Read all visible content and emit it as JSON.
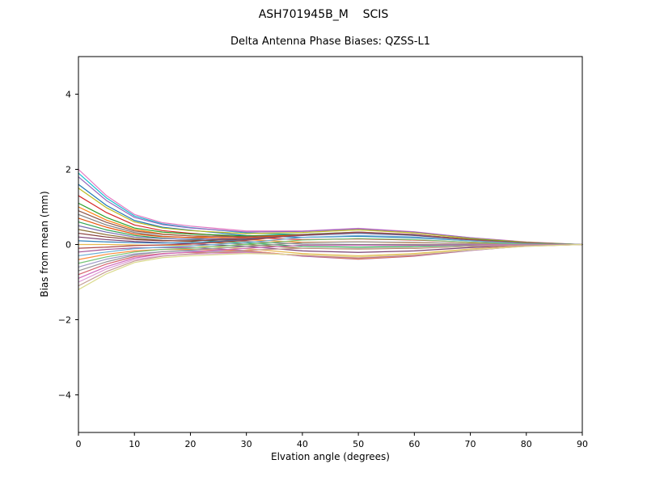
{
  "figure": {
    "suptitle": "ASH701945B_M    SCIS",
    "background": "#ffffff"
  },
  "chart_data": {
    "type": "line",
    "title": "Delta Antenna Phase Biases: QZSS-L1",
    "xlabel": "Elvation angle (degrees)",
    "ylabel": "Bias from mean (mm)",
    "xlim": [
      0,
      90
    ],
    "ylim": [
      -5,
      5
    ],
    "x_ticks": [
      0,
      10,
      20,
      30,
      40,
      50,
      60,
      70,
      80,
      90
    ],
    "x_tick_labels": [
      "0",
      "10",
      "20",
      "30",
      "40",
      "50",
      "60",
      "70",
      "80",
      "90"
    ],
    "y_ticks": [
      -4,
      -2,
      0,
      2,
      4
    ],
    "y_tick_labels": [
      "−4",
      "−2",
      "0",
      "2",
      "4"
    ],
    "grid": false,
    "legend": "none",
    "line_width": 1.2,
    "x": [
      0,
      5,
      10,
      15,
      20,
      30,
      40,
      50,
      60,
      70,
      80,
      90
    ],
    "series": [
      {
        "name": "line-01",
        "color": "#e377c2",
        "values": [
          2.0,
          1.3,
          0.8,
          0.58,
          0.49,
          0.36,
          0.36,
          0.43,
          0.34,
          0.18,
          0.07,
          0.0
        ]
      },
      {
        "name": "line-02",
        "color": "#17becf",
        "values": [
          1.9,
          1.24,
          0.76,
          0.55,
          0.45,
          0.31,
          0.26,
          0.31,
          0.25,
          0.13,
          0.05,
          0.0
        ]
      },
      {
        "name": "line-03",
        "color": "#9467bd",
        "values": [
          1.8,
          1.17,
          0.72,
          0.53,
          0.44,
          0.33,
          0.35,
          0.42,
          0.33,
          0.18,
          0.06,
          0.0
        ]
      },
      {
        "name": "line-04",
        "color": "#1f77b4",
        "values": [
          1.6,
          1.04,
          0.64,
          0.46,
          0.38,
          0.24,
          0.19,
          0.22,
          0.18,
          0.1,
          0.04,
          0.0
        ]
      },
      {
        "name": "line-05",
        "color": "#bcbd22",
        "values": [
          1.5,
          0.98,
          0.6,
          0.44,
          0.37,
          0.29,
          0.32,
          0.39,
          0.31,
          0.16,
          0.06,
          0.0
        ]
      },
      {
        "name": "line-06",
        "color": "#d62728",
        "values": [
          1.3,
          0.85,
          0.52,
          0.37,
          0.3,
          0.19,
          0.13,
          0.15,
          0.12,
          0.06,
          0.03,
          0.0
        ]
      },
      {
        "name": "line-07",
        "color": "#2ca02c",
        "values": [
          1.1,
          0.72,
          0.44,
          0.33,
          0.28,
          0.23,
          0.27,
          0.33,
          0.26,
          0.14,
          0.05,
          0.0
        ]
      },
      {
        "name": "line-08",
        "color": "#ff7f0e",
        "values": [
          1.0,
          0.65,
          0.4,
          0.28,
          0.23,
          0.13,
          0.06,
          0.07,
          0.05,
          0.03,
          0.02,
          0.0
        ]
      },
      {
        "name": "line-09",
        "color": "#8c564b",
        "values": [
          0.9,
          0.59,
          0.36,
          0.27,
          0.23,
          0.21,
          0.26,
          0.32,
          0.26,
          0.13,
          0.04,
          0.0
        ]
      },
      {
        "name": "line-10",
        "color": "#7f7f7f",
        "values": [
          0.8,
          0.52,
          0.32,
          0.22,
          0.18,
          0.08,
          0.01,
          0.0,
          0.0,
          0.0,
          0.01,
          0.0
        ]
      },
      {
        "name": "line-11",
        "color": "#e6550d",
        "values": [
          0.7,
          0.46,
          0.28,
          0.21,
          0.19,
          0.18,
          0.26,
          0.31,
          0.25,
          0.13,
          0.04,
          0.0
        ]
      },
      {
        "name": "line-12",
        "color": "#31a354",
        "values": [
          0.6,
          0.39,
          0.24,
          0.17,
          0.13,
          0.04,
          -0.05,
          -0.07,
          -0.05,
          -0.02,
          0.0,
          0.0
        ]
      },
      {
        "name": "line-13",
        "color": "#756bb1",
        "values": [
          0.5,
          0.33,
          0.2,
          0.16,
          0.14,
          0.16,
          0.24,
          0.3,
          0.24,
          0.12,
          0.04,
          0.0
        ]
      },
      {
        "name": "line-14",
        "color": "#8c6d31",
        "values": [
          0.4,
          0.26,
          0.16,
          0.11,
          0.08,
          0.0,
          -0.1,
          -0.12,
          -0.1,
          -0.05,
          -0.01,
          0.0
        ]
      },
      {
        "name": "line-15",
        "color": "#843c39",
        "values": [
          0.3,
          0.2,
          0.13,
          0.1,
          0.1,
          0.14,
          0.25,
          0.31,
          0.25,
          0.12,
          0.03,
          0.0
        ]
      },
      {
        "name": "line-16",
        "color": "#7b4173",
        "values": [
          0.2,
          0.13,
          0.08,
          0.05,
          0.02,
          -0.05,
          -0.17,
          -0.21,
          -0.17,
          -0.08,
          -0.02,
          0.0
        ]
      },
      {
        "name": "line-17",
        "color": "#3182bd",
        "values": [
          0.1,
          0.07,
          0.05,
          0.04,
          0.05,
          0.12,
          0.26,
          0.32,
          0.26,
          0.13,
          0.03,
          0.0
        ]
      },
      {
        "name": "line-18",
        "color": "#e7ba52",
        "values": [
          0.0,
          0.0,
          -0.01,
          -0.02,
          -0.03,
          -0.11,
          -0.24,
          -0.3,
          -0.24,
          -0.12,
          -0.03,
          0.0
        ]
      },
      {
        "name": "line-19",
        "color": "#ad494a",
        "values": [
          -0.1,
          -0.07,
          -0.03,
          -0.01,
          0.01,
          0.11,
          0.26,
          0.33,
          0.27,
          0.13,
          0.03,
          0.0
        ]
      },
      {
        "name": "line-20",
        "color": "#a55194",
        "values": [
          -0.2,
          -0.13,
          -0.09,
          -0.08,
          -0.08,
          -0.16,
          -0.31,
          -0.39,
          -0.31,
          -0.16,
          -0.04,
          0.0
        ]
      },
      {
        "name": "line-21",
        "color": "#6baed6",
        "values": [
          -0.3,
          -0.2,
          -0.11,
          -0.07,
          -0.04,
          0.05,
          0.19,
          0.24,
          0.2,
          0.1,
          0.02,
          0.0
        ]
      },
      {
        "name": "line-22",
        "color": "#fd8d3c",
        "values": [
          -0.4,
          -0.26,
          -0.17,
          -0.13,
          -0.13,
          -0.17,
          -0.3,
          -0.38,
          -0.3,
          -0.15,
          -0.04,
          0.0
        ]
      },
      {
        "name": "line-23",
        "color": "#74c476",
        "values": [
          -0.5,
          -0.33,
          -0.2,
          -0.13,
          -0.1,
          0.0,
          0.12,
          0.16,
          0.13,
          0.06,
          0.01,
          0.0
        ]
      },
      {
        "name": "line-24",
        "color": "#9e9ac8",
        "values": [
          -0.6,
          -0.39,
          -0.25,
          -0.19,
          -0.17,
          -0.19,
          -0.3,
          -0.36,
          -0.29,
          -0.15,
          -0.04,
          0.0
        ]
      },
      {
        "name": "line-25",
        "color": "#969696",
        "values": [
          -0.7,
          -0.46,
          -0.28,
          -0.19,
          -0.15,
          -0.05,
          0.05,
          0.07,
          0.06,
          0.02,
          0.0,
          0.0
        ]
      },
      {
        "name": "line-26",
        "color": "#d6616b",
        "values": [
          -0.8,
          -0.52,
          -0.32,
          -0.24,
          -0.21,
          -0.21,
          -0.29,
          -0.35,
          -0.28,
          -0.14,
          -0.04,
          0.0
        ]
      },
      {
        "name": "line-27",
        "color": "#ce6dbd",
        "values": [
          -0.9,
          -0.59,
          -0.36,
          -0.25,
          -0.2,
          -0.1,
          -0.02,
          -0.02,
          -0.02,
          -0.01,
          -0.01,
          0.0
        ]
      },
      {
        "name": "line-28",
        "color": "#de9ed6",
        "values": [
          -1.0,
          -0.65,
          -0.4,
          -0.3,
          -0.26,
          -0.22,
          -0.28,
          -0.34,
          -0.27,
          -0.14,
          -0.05,
          0.0
        ]
      },
      {
        "name": "line-29",
        "color": "#c49c94",
        "values": [
          -1.1,
          -0.72,
          -0.44,
          -0.31,
          -0.25,
          -0.15,
          -0.1,
          -0.11,
          -0.09,
          -0.05,
          -0.02,
          0.0
        ]
      },
      {
        "name": "line-30",
        "color": "#dbdb8d",
        "values": [
          -1.2,
          -0.78,
          -0.48,
          -0.35,
          -0.3,
          -0.24,
          -0.27,
          -0.33,
          -0.26,
          -0.14,
          -0.05,
          0.0
        ]
      }
    ]
  }
}
